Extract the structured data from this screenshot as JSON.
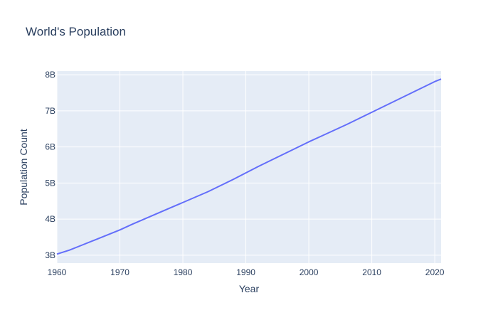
{
  "chart_data": {
    "type": "line",
    "title": "World's Population",
    "xlabel": "Year",
    "ylabel": "Population Count",
    "xlim": [
      1960,
      2021
    ],
    "ylim": [
      2780000000,
      8100000000
    ],
    "x_ticks": [
      1960,
      1970,
      1980,
      1990,
      2000,
      2010,
      2020
    ],
    "x_tick_labels": [
      "1960",
      "1970",
      "1980",
      "1990",
      "2000",
      "2010",
      "2020"
    ],
    "y_ticks": [
      3000000000,
      4000000000,
      5000000000,
      6000000000,
      7000000000,
      8000000000
    ],
    "y_tick_labels": [
      "3B",
      "4B",
      "5B",
      "6B",
      "7B",
      "8B"
    ],
    "grid": true,
    "colors": {
      "line": "#636efa",
      "plot_bg": "#e5ecf6",
      "grid": "#ffffff"
    },
    "series": [
      {
        "x": [
          1960,
          1962,
          1964,
          1966,
          1968,
          1970,
          1972,
          1974,
          1976,
          1978,
          1980,
          1982,
          1984,
          1986,
          1988,
          1990,
          1992,
          1994,
          1996,
          1998,
          2000,
          2002,
          2004,
          2006,
          2008,
          2010,
          2012,
          2014,
          2016,
          2018,
          2020,
          2021
        ],
        "y": [
          3030000000,
          3140000000,
          3280000000,
          3420000000,
          3560000000,
          3700000000,
          3860000000,
          4010000000,
          4160000000,
          4310000000,
          4460000000,
          4610000000,
          4760000000,
          4930000000,
          5100000000,
          5280000000,
          5460000000,
          5630000000,
          5800000000,
          5970000000,
          6140000000,
          6300000000,
          6460000000,
          6620000000,
          6790000000,
          6960000000,
          7130000000,
          7300000000,
          7470000000,
          7640000000,
          7810000000,
          7880000000
        ]
      }
    ]
  }
}
